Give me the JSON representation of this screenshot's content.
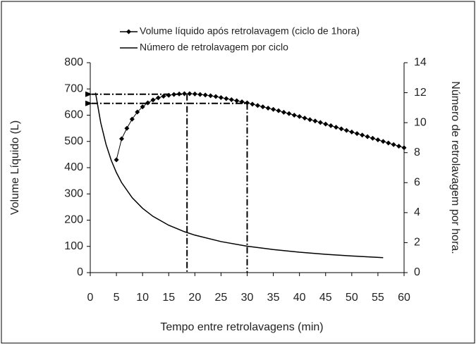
{
  "chart_data": {
    "type": "line",
    "xlabel": "Tempo entre retrolavagens (min)",
    "ylabel": "Volume Líquido (L)",
    "y2label": "Número de retrolavagem por hora.",
    "xlim": [
      0,
      60
    ],
    "xticks": [
      0,
      5,
      10,
      15,
      20,
      25,
      30,
      35,
      40,
      45,
      50,
      55,
      60
    ],
    "ylim": [
      0,
      800
    ],
    "yticks": [
      0,
      100,
      200,
      300,
      400,
      500,
      600,
      700,
      800
    ],
    "y2lim": [
      0,
      14
    ],
    "y2ticks": [
      0,
      2,
      4,
      6,
      8,
      10,
      12,
      14
    ],
    "series": [
      {
        "name": "Volume líquido após retrolavagem (ciclo de 1hora)",
        "color": "#000000",
        "marker": "diamond",
        "x": [
          5,
          6,
          7,
          8,
          9,
          10,
          11,
          12,
          13,
          14,
          15,
          16,
          17,
          18,
          19,
          20,
          21,
          22,
          23,
          24,
          25,
          26,
          27,
          28,
          29,
          30,
          31,
          32,
          33,
          34,
          35,
          36,
          37,
          38,
          39,
          40,
          41,
          42,
          43,
          44,
          45,
          46,
          47,
          48,
          49,
          50,
          51,
          52,
          53,
          54,
          55,
          56,
          57,
          58,
          59,
          60
        ],
        "values": [
          430,
          510,
          550,
          585,
          612,
          632,
          647,
          658,
          666,
          672,
          676,
          679,
          681,
          682,
          682,
          681,
          679,
          677,
          674,
          671,
          667,
          663,
          659,
          655,
          651,
          647,
          642,
          637,
          632,
          627,
          622,
          617,
          611,
          606,
          600,
          595,
          589,
          583,
          578,
          572,
          566,
          560,
          554,
          548,
          542,
          536,
          530,
          524,
          518,
          512,
          506,
          500,
          494,
          488,
          482,
          476
        ]
      },
      {
        "name": "Número de retrolavagem por ciclo",
        "color": "#000000",
        "axis": "y2",
        "x": [
          1,
          2,
          3,
          4,
          5,
          6,
          8,
          10,
          12,
          15,
          18,
          20,
          25,
          30,
          35,
          40,
          45,
          50,
          56
        ],
        "values": [
          12,
          10,
          8.57,
          7.5,
          6.67,
          6,
          5,
          4.29,
          3.75,
          3.16,
          2.73,
          2.5,
          2.07,
          1.76,
          1.54,
          1.36,
          1.22,
          1.11,
          1.0
        ]
      }
    ],
    "reference_lines": [
      {
        "x": 18.5,
        "y": 680
      },
      {
        "x": 30,
        "y": 645
      }
    ]
  }
}
